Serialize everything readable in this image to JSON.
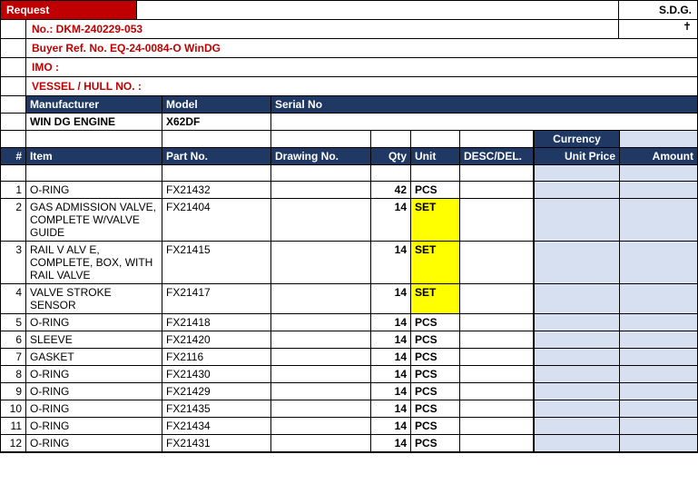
{
  "header": {
    "request_label": "Request",
    "sdg": "S.D.G.",
    "no_label": "No.:  DKM-240229-053",
    "cross": "✝",
    "buyer_ref": "Buyer Ref. No. EQ-24-0084-O WinDG",
    "imo": "IMO :",
    "vessel": "VESSEL / HULL NO. :"
  },
  "mfr": {
    "manufacturer_label": "Manufacturer",
    "model_label": "Model",
    "serial_label": "Serial No",
    "manufacturer": "WIN DG ENGINE",
    "model": "X62DF",
    "serial": ""
  },
  "currency_label": "Currency",
  "columns": {
    "num": "#",
    "item": "Item",
    "part": "Part No.",
    "drawing": "Drawing No.",
    "qty": "Qty",
    "unit": "Unit",
    "desc": "DESC/DEL.",
    "unit_price": "Unit Price",
    "amount": "Amount"
  },
  "rows": [
    {
      "n": "1",
      "item": "O-RING",
      "part": "FX21432",
      "drawing": "",
      "qty": "42",
      "unit": "PCS",
      "unit_hl": false
    },
    {
      "n": "2",
      "item": "GAS ADMISSION VALVE, COMPLETE W/VALVE GUIDE",
      "part": "FX21404",
      "drawing": "",
      "qty": "14",
      "unit": "SET",
      "unit_hl": true
    },
    {
      "n": "3",
      "item": "RAIL V ALV E, COMPLETE, BOX, WITH RAIL VALVE",
      "part": "FX21415",
      "drawing": "",
      "qty": "14",
      "unit": "SET",
      "unit_hl": true
    },
    {
      "n": "4",
      "item": "VALVE STROKE SENSOR",
      "part": "FX21417",
      "drawing": "",
      "qty": "14",
      "unit": "SET",
      "unit_hl": true
    },
    {
      "n": "5",
      "item": "O-RING",
      "part": "FX21418",
      "drawing": "",
      "qty": "14",
      "unit": "PCS",
      "unit_hl": false
    },
    {
      "n": "6",
      "item": "SLEEVE",
      "part": "FX21420",
      "drawing": "",
      "qty": "14",
      "unit": "PCS",
      "unit_hl": false
    },
    {
      "n": "7",
      "item": "GASKET",
      "part": "FX2116",
      "drawing": "",
      "qty": "14",
      "unit": "PCS",
      "unit_hl": false
    },
    {
      "n": "8",
      "item": "O-RING",
      "part": "FX21430",
      "drawing": "",
      "qty": "14",
      "unit": "PCS",
      "unit_hl": false
    },
    {
      "n": "9",
      "item": "O-RING",
      "part": "FX21429",
      "drawing": "",
      "qty": "14",
      "unit": "PCS",
      "unit_hl": false
    },
    {
      "n": "10",
      "item": "O-RING",
      "part": "FX21435",
      "drawing": "",
      "qty": "14",
      "unit": "PCS",
      "unit_hl": false
    },
    {
      "n": "11",
      "item": "O-RING",
      "part": "FX21434",
      "drawing": "",
      "qty": "14",
      "unit": "PCS",
      "unit_hl": false
    },
    {
      "n": "12",
      "item": "O-RING",
      "part": "FX21431",
      "drawing": "",
      "qty": "14",
      "unit": "PCS",
      "unit_hl": false
    }
  ],
  "colors": {
    "header_bg": "#1f3864",
    "red": "#c00000",
    "price_bg": "#d6e0f0",
    "highlight": "#ffff00"
  }
}
